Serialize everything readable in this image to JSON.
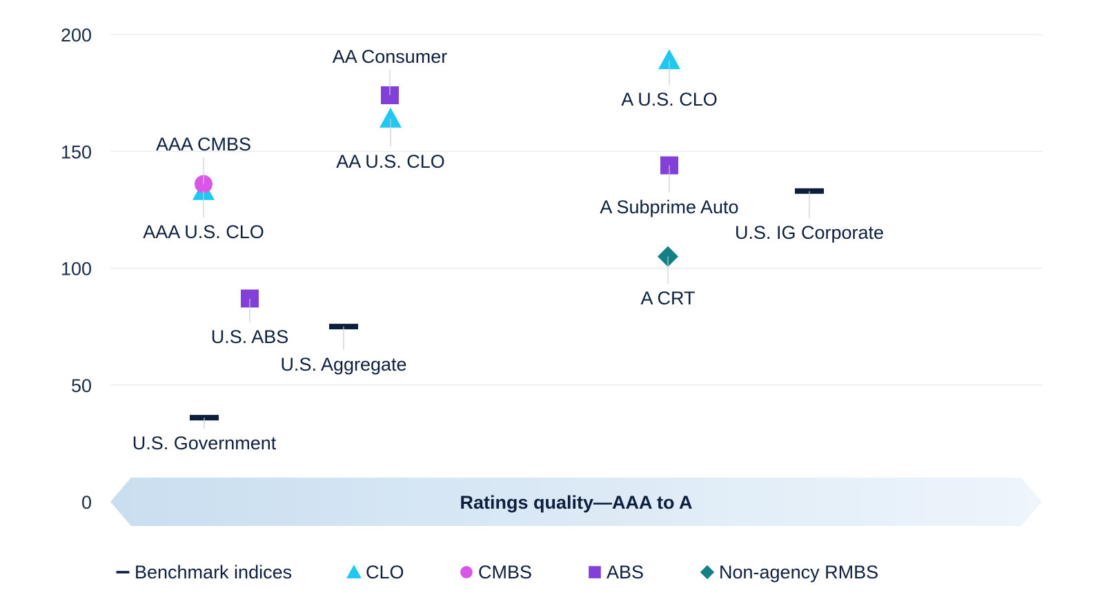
{
  "chart_data": {
    "type": "scatter",
    "title": "",
    "xlabel": "Ratings quality—AAA to A",
    "ylabel": "",
    "ylim": [
      0,
      200
    ],
    "yticks": [
      "0",
      "50",
      "100",
      "150",
      "200"
    ],
    "grid": true,
    "legend_position": "bottom",
    "categories": [
      {
        "name": "Benchmark indices",
        "color": "#0d1f3c",
        "marker": "dash"
      },
      {
        "name": "CLO",
        "color": "#1ec8f0",
        "marker": "triangle"
      },
      {
        "name": "CMBS",
        "color": "#d957e8",
        "marker": "circle"
      },
      {
        "name": "ABS",
        "color": "#8340d9",
        "marker": "square"
      },
      {
        "name": "Non-agency RMBS",
        "color": "#157f86",
        "marker": "diamond"
      }
    ],
    "points": [
      {
        "label": "AAA U.S. CLO",
        "category": "CLO",
        "y": 133
      },
      {
        "label": "AAA CMBS",
        "category": "CMBS",
        "y": 136
      },
      {
        "label": "U.S. ABS",
        "category": "ABS",
        "y": 87
      },
      {
        "label": "U.S. Government",
        "category": "Benchmark indices",
        "y": 36
      },
      {
        "label": "U.S. Aggregate",
        "category": "Benchmark indices",
        "y": 75
      },
      {
        "label": "AA Consumer",
        "category": "ABS",
        "y": 174
      },
      {
        "label": "AA U.S. CLO",
        "category": "CLO",
        "y": 164
      },
      {
        "label": "A U.S. CLO",
        "category": "CLO",
        "y": 189
      },
      {
        "label": "A Subprime Auto",
        "category": "ABS",
        "y": 144
      },
      {
        "label": "A CRT",
        "category": "Non-agency RMBS",
        "y": 105
      },
      {
        "label": "U.S. IG Corporate",
        "category": "Benchmark indices",
        "y": 133
      }
    ]
  }
}
